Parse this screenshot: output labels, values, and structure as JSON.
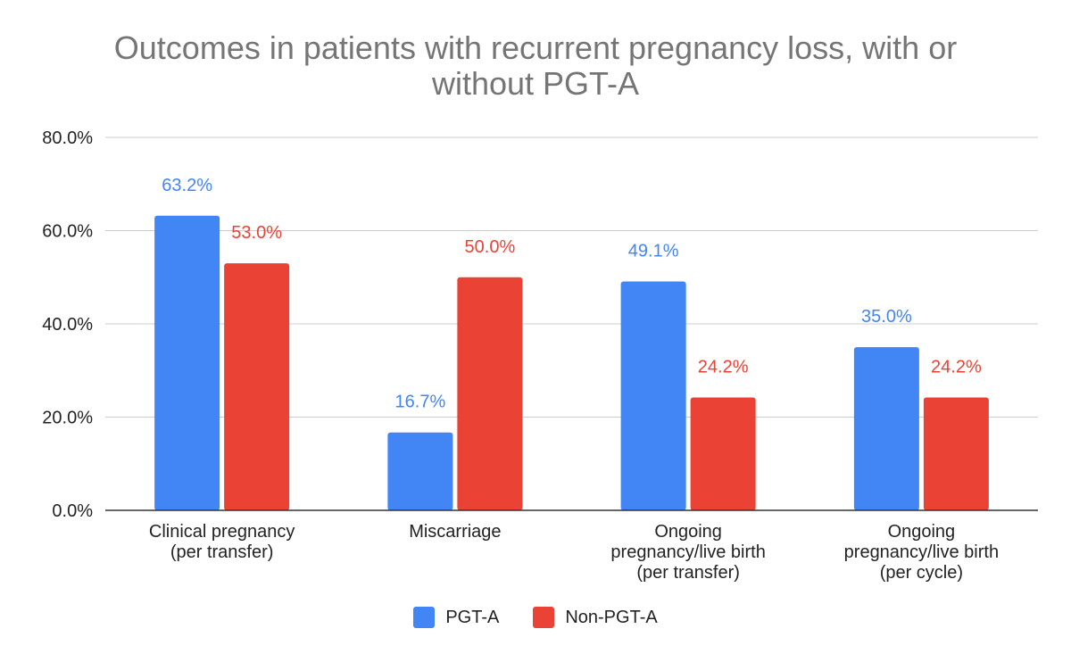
{
  "chart_data": {
    "type": "bar",
    "title": [
      "Outcomes in patients with recurrent pregnancy loss, with or",
      "without PGT-A"
    ],
    "categories": [
      [
        "Clinical pregnancy",
        "(per transfer)"
      ],
      [
        "Miscarriage"
      ],
      [
        "Ongoing",
        "pregnancy/live birth",
        "(per transfer)"
      ],
      [
        "Ongoing",
        "pregnancy/live birth",
        "(per cycle)"
      ]
    ],
    "series": [
      {
        "name": "PGT-A",
        "color": "#4285F4",
        "label_color": "#4285F4",
        "values": [
          63.2,
          16.7,
          49.1,
          35.0
        ]
      },
      {
        "name": "Non-PGT-A",
        "color": "#EA4335",
        "label_color": "#EA4335",
        "values": [
          53.0,
          50.0,
          24.2,
          24.2
        ]
      }
    ],
    "y_ticks": [
      "0.0%",
      "20.0%",
      "40.0%",
      "60.0%",
      "80.0%"
    ],
    "ylim": [
      0,
      80
    ],
    "y_tick_values": [
      0,
      20,
      40,
      60,
      80
    ],
    "grid": true,
    "legend_position": "bottom"
  }
}
